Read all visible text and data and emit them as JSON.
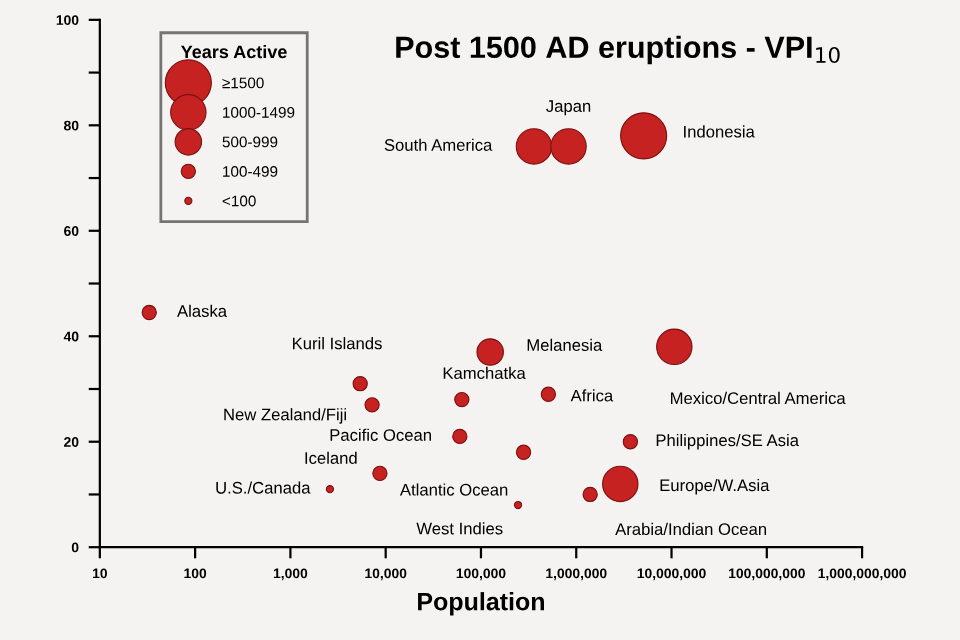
{
  "chart_data": {
    "type": "bubble",
    "title": "Post 1500 AD eruptions - VPI$_{10}$",
    "xlabel": "Population",
    "legend_title": "Years Active",
    "log": "x",
    "xlim": [
      10,
      1000000000
    ],
    "xticks": [
      {
        "value": 10,
        "label": "10"
      },
      {
        "value": 100,
        "label": "100"
      },
      {
        "value": 1000,
        "label": "1,000"
      },
      {
        "value": 10000,
        "label": "10,000"
      },
      {
        "value": 100000,
        "label": "100,000"
      },
      {
        "value": 1000000,
        "label": "1,000,000"
      },
      {
        "value": 10000000,
        "label": "10,000,000"
      },
      {
        "value": 100000000,
        "label": "100,000,000"
      },
      {
        "value": 1000000000,
        "label": "1,000,000,000"
      }
    ],
    "ylim": [
      0,
      100
    ],
    "yticks": [
      0,
      {
        "value": 10,
        "label": null
      },
      20,
      {
        "value": 30,
        "label": null
      },
      40,
      {
        "value": 50,
        "label": null
      },
      60,
      {
        "value": 70,
        "label": null
      },
      80,
      {
        "value": 90,
        "label": null
      },
      100
    ],
    "grid": false,
    "size_legend": [
      {
        "value": 1,
        "label": "≥1500"
      },
      {
        "value": 0.59,
        "label": "1000-1499"
      },
      {
        "value": 0.33,
        "label": "500-999"
      },
      {
        "value": 0.095,
        "label": "100-499"
      },
      {
        "value": 0.024,
        "label": "<100"
      }
    ],
    "series": [
      {
        "color": "#c62222",
        "x": [
          33,
          5400,
          7200,
          60000,
          63000,
          8700,
          2600,
          125000,
          510000,
          10700000,
          3700000,
          2900000,
          1400000,
          280000,
          245000,
          360000,
          830000,
          5100000
        ],
        "values": [
          44.5,
          31,
          27,
          21,
          28,
          14,
          11,
          37,
          29,
          38,
          20,
          12,
          10,
          18,
          8,
          76,
          76,
          78
        ],
        "sizes": [
          0.095,
          0.095,
          0.095,
          0.095,
          0.095,
          0.095,
          0.024,
          0.33,
          0.095,
          0.59,
          0.095,
          0.59,
          0.095,
          0.095,
          0.024,
          0.59,
          0.59,
          1
        ]
      }
    ],
    "annotations": [
      {
        "text": "Alaska",
        "x": 33,
        "y": 44.5
      },
      {
        "text": "Kuril Islands",
        "x": 5400,
        "y": 31
      },
      {
        "text": "New Zealand/Fiji",
        "x": 7200,
        "y": 27
      },
      {
        "text": "Pacific Ocean",
        "x": 60000,
        "y": 21
      },
      {
        "text": "Kamchatka",
        "x": 63000,
        "y": 28
      },
      {
        "text": "Iceland",
        "x": 8700,
        "y": 14
      },
      {
        "text": "U.S./Canada",
        "x": 2600,
        "y": 11
      },
      {
        "text": "Melanesia",
        "x": 125000,
        "y": 37
      },
      {
        "text": "Africa",
        "x": 510000,
        "y": 29
      },
      {
        "text": "Mexico/Central America",
        "x": 10700000,
        "y": 38
      },
      {
        "text": "Philippines/SE Asia",
        "x": 3700000,
        "y": 20
      },
      {
        "text": "Europe/W.Asia",
        "x": 2900000,
        "y": 12
      },
      {
        "text": "Arabia/Indian Ocean",
        "x": 1400000,
        "y": 10
      },
      {
        "text": "Atlantic Ocean",
        "x": 280000,
        "y": 18
      },
      {
        "text": "West Indies",
        "x": 245000,
        "y": 8
      },
      {
        "text": "South America",
        "x": 360000,
        "y": 76
      },
      {
        "text": "Japan",
        "x": 830000,
        "y": 76
      },
      {
        "text": "Indonesia",
        "x": 5100000,
        "y": 78
      }
    ]
  }
}
